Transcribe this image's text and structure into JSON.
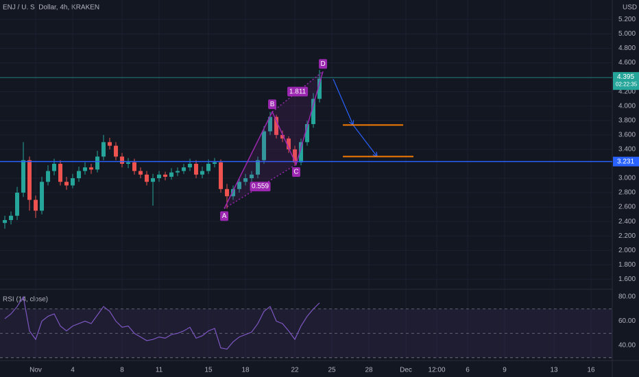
{
  "header": {
    "symbol": "ENJ / U. S. Dollar, 4h, KRAKEN"
  },
  "chart_data": [
    {
      "type": "candlestick",
      "currency": "USD",
      "x": [
        -1.5,
        -1.0,
        -0.5,
        0.0,
        0.5,
        1.0,
        1.5,
        2.0,
        2.5,
        3.0,
        3.5,
        4.0,
        4.5,
        5.0,
        5.5,
        6.0,
        6.5,
        7.0,
        7.5,
        8.0,
        8.5,
        9.0,
        9.5,
        10.0,
        10.5,
        11.0,
        11.5,
        12.0,
        12.5,
        13.0,
        13.5,
        14.0,
        14.5,
        15.0,
        15.5,
        16.0,
        16.5,
        17.0,
        17.5,
        18.0,
        18.5,
        19.0,
        19.5,
        20.0,
        20.5,
        21.0,
        21.5,
        22.0,
        22.5,
        23.0,
        23.5,
        24.0
      ],
      "open": [
        2.38,
        2.42,
        2.48,
        2.8,
        3.25,
        2.7,
        2.55,
        2.95,
        3.1,
        3.2,
        2.95,
        2.9,
        3.0,
        3.1,
        3.15,
        3.12,
        3.3,
        3.5,
        3.45,
        3.3,
        3.2,
        3.22,
        3.1,
        3.05,
        2.95,
        3.0,
        3.05,
        3.02,
        3.08,
        3.1,
        3.15,
        3.2,
        3.05,
        3.1,
        3.2,
        3.22,
        2.85,
        2.75,
        2.85,
        2.95,
        3.0,
        3.05,
        3.25,
        3.65,
        3.85,
        3.6,
        3.55,
        3.4,
        3.22,
        3.5,
        3.75,
        4.1
      ],
      "high": [
        2.48,
        2.54,
        2.88,
        3.5,
        3.3,
        2.76,
        3.02,
        3.18,
        3.27,
        3.25,
        3.02,
        3.06,
        3.16,
        3.22,
        3.2,
        3.38,
        3.6,
        3.56,
        3.5,
        3.35,
        3.28,
        3.27,
        3.15,
        3.1,
        3.06,
        3.1,
        3.09,
        3.14,
        3.15,
        3.2,
        3.27,
        3.25,
        3.16,
        3.26,
        3.28,
        3.26,
        2.92,
        2.9,
        3.0,
        3.06,
        3.1,
        3.3,
        3.72,
        3.92,
        3.88,
        3.66,
        3.58,
        3.45,
        3.55,
        3.8,
        4.18,
        4.5
      ],
      "low": [
        2.3,
        2.36,
        2.42,
        2.74,
        2.55,
        2.45,
        2.5,
        2.9,
        3.04,
        2.9,
        2.84,
        2.86,
        2.95,
        3.05,
        3.06,
        3.08,
        3.25,
        3.4,
        3.25,
        3.15,
        3.14,
        3.05,
        3.0,
        2.9,
        2.62,
        2.95,
        2.97,
        2.98,
        3.03,
        3.06,
        3.1,
        3.0,
        3.0,
        3.06,
        3.15,
        2.8,
        2.58,
        2.7,
        2.8,
        2.9,
        2.95,
        3.0,
        3.2,
        3.6,
        3.55,
        3.5,
        3.35,
        3.18,
        3.18,
        3.45,
        3.7,
        4.05
      ],
      "close": [
        2.42,
        2.48,
        2.8,
        3.25,
        2.7,
        2.55,
        2.95,
        3.1,
        3.2,
        2.95,
        2.9,
        3.0,
        3.1,
        3.15,
        3.12,
        3.3,
        3.5,
        3.45,
        3.3,
        3.2,
        3.22,
        3.1,
        3.05,
        2.95,
        3.0,
        3.05,
        3.02,
        3.08,
        3.1,
        3.15,
        3.2,
        3.05,
        3.1,
        3.2,
        3.22,
        2.85,
        2.75,
        2.85,
        2.95,
        3.0,
        3.05,
        3.25,
        3.65,
        3.85,
        3.6,
        3.55,
        3.4,
        3.22,
        3.5,
        3.75,
        4.1,
        4.38
      ],
      "up_color": "#26a69a",
      "down_color": "#ef5350",
      "xlim": [
        -1.89,
        47.72
      ],
      "xticks": [
        {
          "value": 1,
          "label": "Nov"
        },
        4,
        8,
        11,
        15,
        18,
        22,
        25,
        28,
        {
          "value": 31,
          "label": "Dec"
        },
        {
          "value": 33.5,
          "label": "12:00"
        },
        {
          "value": 36,
          "label": "6"
        },
        {
          "value": 39,
          "label": "9"
        },
        {
          "value": 43,
          "label": "13"
        },
        {
          "value": 46,
          "label": "16"
        }
      ],
      "ylim": [
        1.48,
        5.47
      ],
      "yticks": [
        {
          "value": 5.2,
          "label": "5.200"
        },
        {
          "value": 5.0,
          "label": "5.000"
        },
        {
          "value": 4.8,
          "label": "4.800"
        },
        {
          "value": 4.6,
          "label": "4.600"
        },
        {
          "value": 4.2,
          "label": "4.200"
        },
        {
          "value": 4.0,
          "label": "4.000"
        },
        {
          "value": 3.8,
          "label": "3.800"
        },
        {
          "value": 3.6,
          "label": "3.600"
        },
        {
          "value": 3.4,
          "label": "3.400"
        },
        {
          "value": 3.0,
          "label": "3.000"
        },
        {
          "value": 2.8,
          "label": "2.800"
        },
        {
          "value": 2.6,
          "label": "2.600"
        },
        {
          "value": 2.4,
          "label": "2.400"
        },
        {
          "value": 2.2,
          "label": "2.200"
        },
        {
          "value": 2.0,
          "label": "2.000"
        },
        {
          "value": 1.8,
          "label": "1.800"
        },
        {
          "value": 1.6,
          "label": "1.600"
        }
      ],
      "hlines": [
        {
          "value": 3.231,
          "label": "3.231",
          "color": "#2962ff"
        }
      ],
      "last_price": {
        "value": 4.395,
        "label": "4.395",
        "countdown": "02:22:35",
        "color": "#26a69a"
      },
      "pattern": {
        "color": "#9c27b0",
        "points": [
          {
            "label": "A",
            "x": 16.28,
            "y": 2.58
          },
          {
            "label": "B",
            "x": 20.17,
            "y": 3.92
          },
          {
            "label": "C",
            "x": 22.11,
            "y": 3.19
          },
          {
            "label": "D",
            "x": 24.28,
            "y": 4.48
          }
        ],
        "ratios": [
          1.811,
          0.559
        ]
      },
      "forecast": {
        "color": "#2962ff",
        "x": [
          25.11,
          26.72,
          28.67
        ],
        "y": [
          4.374,
          3.738,
          3.3
        ]
      },
      "targets": {
        "color": "#f57c00",
        "lines": [
          {
            "value": 3.738,
            "x": [
              25.89,
              30.78
            ]
          },
          {
            "value": 3.3,
            "x": [
              25.89,
              31.61
            ]
          }
        ]
      }
    },
    {
      "type": "line",
      "name": "RSI (14, close)",
      "color": "#7e57c2",
      "x": [
        -1.5,
        -1.0,
        -0.5,
        0.0,
        0.5,
        1.0,
        1.5,
        2.0,
        2.5,
        3.0,
        3.5,
        4.0,
        4.5,
        5.0,
        5.5,
        6.0,
        6.5,
        7.0,
        7.5,
        8.0,
        8.5,
        9.0,
        9.5,
        10.0,
        10.5,
        11.0,
        11.5,
        12.0,
        12.5,
        13.0,
        13.5,
        14.0,
        14.5,
        15.0,
        15.5,
        16.0,
        16.5,
        17.0,
        17.5,
        18.0,
        18.5,
        19.0,
        19.5,
        20.0,
        20.5,
        21.0,
        21.5,
        22.0,
        22.5,
        23.0,
        23.5,
        24.0
      ],
      "values": [
        62,
        66,
        72,
        80,
        52,
        45,
        60,
        64,
        66,
        56,
        52,
        56,
        58,
        60,
        58,
        65,
        72,
        68,
        60,
        55,
        56,
        50,
        47,
        44,
        45,
        47,
        46,
        49,
        50,
        52,
        55,
        46,
        48,
        52,
        54,
        38,
        37,
        43,
        47,
        49,
        51,
        58,
        68,
        72,
        60,
        58,
        52,
        45,
        56,
        64,
        70,
        75
      ],
      "xlim": [
        -1.89,
        47.72
      ],
      "ylim": [
        28.2,
        84.5
      ],
      "yticks": [
        {
          "value": 80,
          "label": "80.00"
        },
        {
          "value": 60,
          "label": "60.00"
        },
        {
          "value": 40,
          "label": "40.00"
        }
      ],
      "levels": [
        70,
        50,
        30
      ],
      "band_color": "#7e57c2"
    }
  ]
}
